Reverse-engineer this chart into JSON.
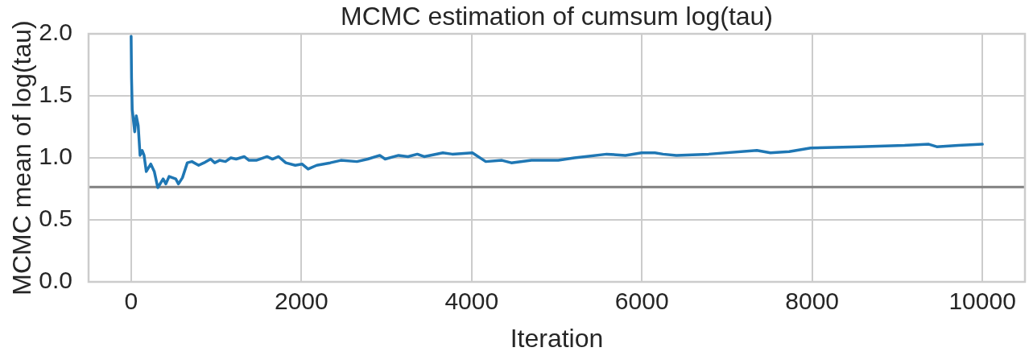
{
  "chart_data": {
    "type": "line",
    "title": "MCMC estimation of cumsum log(tau)",
    "xlabel": "Iteration",
    "ylabel": "MCMC mean of log(tau)",
    "x": [
      0,
      5,
      13,
      42,
      60,
      83,
      105,
      130,
      152,
      178,
      231,
      272,
      313,
      376,
      408,
      446,
      524,
      556,
      603,
      660,
      714,
      793,
      855,
      934,
      982,
      1038,
      1108,
      1171,
      1234,
      1328,
      1385,
      1470,
      1597,
      1660,
      1732,
      1817,
      1928,
      2007,
      2079,
      2180,
      2339,
      2464,
      2653,
      2780,
      2921,
      2984,
      3142,
      3252,
      3362,
      3442,
      3662,
      3773,
      4009,
      4166,
      4356,
      4466,
      4703,
      5018,
      5207,
      5334,
      5586,
      5807,
      5996,
      6153,
      6248,
      6405,
      6784,
      7351,
      7510,
      7730,
      7983,
      8551,
      9086,
      9370,
      9464,
      9717,
      10000
    ],
    "values": [
      1.98,
      1.64,
      1.39,
      1.21,
      1.34,
      1.26,
      1.02,
      1.06,
      1.02,
      0.89,
      0.95,
      0.89,
      0.76,
      0.83,
      0.79,
      0.85,
      0.83,
      0.79,
      0.84,
      0.96,
      0.97,
      0.94,
      0.96,
      0.99,
      0.96,
      0.98,
      0.97,
      1.0,
      0.99,
      1.01,
      0.98,
      0.98,
      1.01,
      0.99,
      1.01,
      0.96,
      0.94,
      0.95,
      0.91,
      0.94,
      0.96,
      0.98,
      0.97,
      0.99,
      1.02,
      0.99,
      1.02,
      1.01,
      1.03,
      1.01,
      1.04,
      1.03,
      1.04,
      0.97,
      0.98,
      0.96,
      0.98,
      0.98,
      1.0,
      1.01,
      1.03,
      1.02,
      1.04,
      1.04,
      1.03,
      1.02,
      1.03,
      1.06,
      1.04,
      1.05,
      1.08,
      1.09,
      1.1,
      1.11,
      1.09,
      1.1,
      1.11
    ],
    "color": "#1f77b4",
    "marker": "none",
    "xlim": [
      -500,
      10500
    ],
    "xticks": [
      0,
      2000,
      4000,
      6000,
      8000,
      10000
    ],
    "ylim": [
      0,
      2
    ],
    "yticks": [
      {
        "value": 0,
        "label": "0.0"
      },
      0.5,
      {
        "value": 1,
        "label": "1.0"
      },
      1.5,
      {
        "value": 2,
        "label": "2.0"
      }
    ],
    "ref_lines": [
      {
        "axis": "y",
        "value": 0.765,
        "color": "#808080"
      }
    ],
    "grid": true
  }
}
